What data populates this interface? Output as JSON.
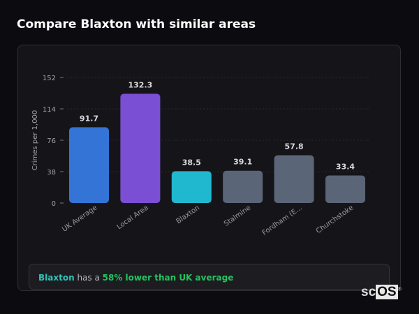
{
  "page": {
    "title": "Compare Blaxton with similar areas"
  },
  "summary": {
    "area": "Blaxton",
    "middle": " has a ",
    "comparison": "58% lower than UK average"
  },
  "watermark": {
    "prefix": "sc",
    "highlight": "OS",
    "mark": "®"
  },
  "chart_data": {
    "type": "bar",
    "categories": [
      "UK Average",
      "Local Area",
      "Blaxton",
      "Stalmine",
      "Fordham (E...",
      "Churchstoke"
    ],
    "values": [
      91.7,
      132.3,
      38.5,
      39.1,
      57.8,
      33.4
    ],
    "data_labels": [
      "91.7",
      "132.3",
      "38.5",
      "39.1",
      "57.8",
      "33.4"
    ],
    "colors": [
      "#3474d6",
      "#7b4fd4",
      "#20b8cf",
      "#5a6577",
      "#5a6577",
      "#5a6577"
    ],
    "ylabel": "Crimes per 1,000",
    "xlabel": "",
    "yticks": [
      0,
      38,
      76,
      114,
      152
    ],
    "ylim": [
      0,
      152
    ],
    "grid": true
  }
}
